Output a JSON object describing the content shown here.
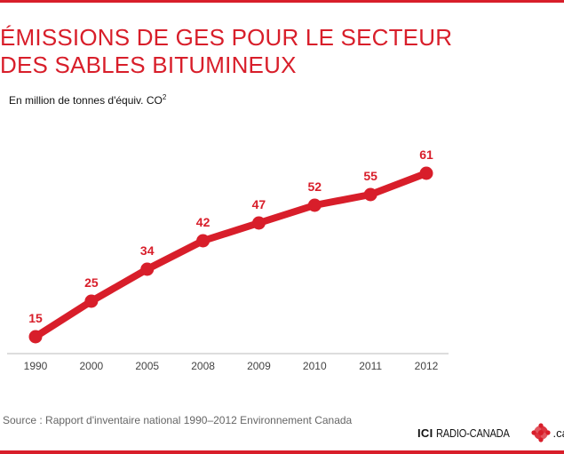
{
  "title_line1": "ÉMISSIONS DE GES POUR LE SECTEUR",
  "title_line2": "DES SABLES BITUMINEUX",
  "subtitle_main": "En million de tonnes d'équiv. CO",
  "subtitle_sup": "2",
  "source": "Source : Rapport d'inventaire national 1990–2012 Environnement Canada",
  "logo": {
    "ici": "ICI",
    "radio_canada": "RADIO-CANADA",
    "domain": ".ca",
    "icon": "cbc-gem-icon"
  },
  "colors": {
    "accent": "#d81e2a",
    "axis": "#bbbbbb",
    "tick_text": "#444444"
  },
  "chart_data": {
    "type": "line",
    "title": "ÉMISSIONS DE GES POUR LE SECTEUR DES SABLES BITUMINEUX",
    "ylabel": "En million de tonnes d'équiv. CO2",
    "xlabel": "",
    "categories": [
      "1990",
      "2000",
      "2005",
      "2008",
      "2009",
      "2010",
      "2011",
      "2012"
    ],
    "series": [
      {
        "values": [
          15,
          25,
          34,
          42,
          47,
          52,
          55,
          61
        ]
      }
    ],
    "data_labels": true,
    "grid": false,
    "legend": "none"
  }
}
